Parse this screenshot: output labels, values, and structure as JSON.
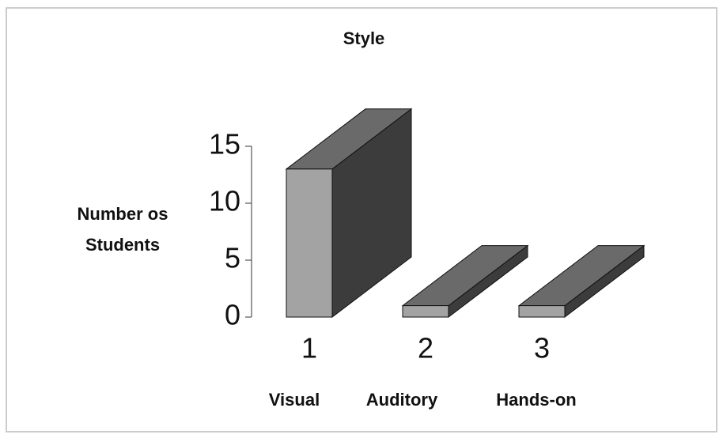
{
  "chart_data": {
    "type": "bar3d",
    "title": "Style",
    "ylabel": [
      "Number os",
      "Students"
    ],
    "categories": [
      "1",
      "2",
      "3"
    ],
    "category_names": [
      "Visual",
      "Auditory",
      "Hands-on"
    ],
    "values": [
      13,
      1,
      1
    ],
    "colors": {
      "front": "#a3a3a3",
      "top": "#6a6a6a",
      "side": "#3c3c3c"
    },
    "ylim": [
      0,
      15
    ],
    "yticks": [
      0,
      5,
      10,
      15
    ],
    "grid": false
  }
}
